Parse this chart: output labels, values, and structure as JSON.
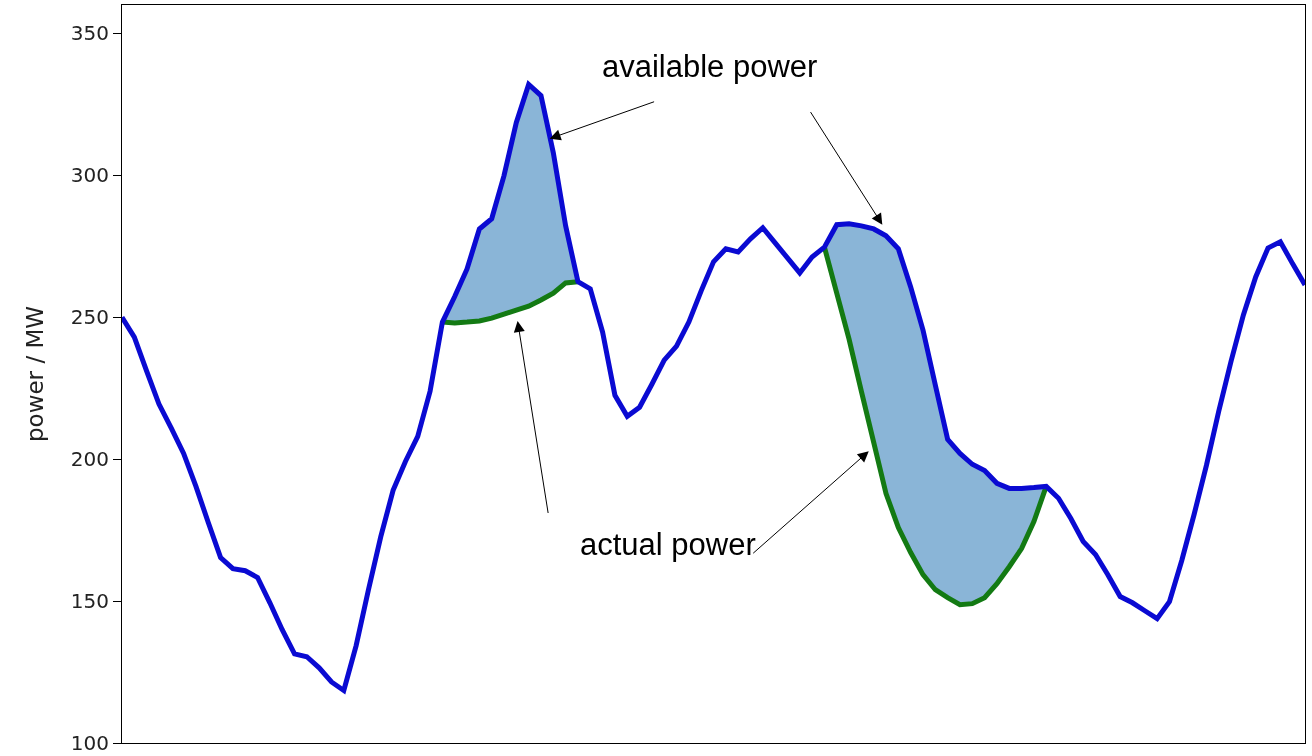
{
  "chart_data": {
    "type": "line",
    "ylabel": "power / MW",
    "annotations": [
      "available power",
      "actual power"
    ],
    "categories": [
      null,
      null,
      null,
      null,
      null,
      null,
      null,
      null,
      null,
      null,
      null,
      null,
      null,
      null,
      null,
      null,
      null,
      null,
      null,
      null,
      null,
      null,
      null,
      null,
      null,
      null,
      null,
      null,
      null,
      null,
      null,
      null,
      null,
      null,
      null,
      null,
      null,
      null,
      null,
      null,
      null,
      null,
      null,
      null,
      null,
      null,
      null,
      null,
      null,
      null,
      null,
      null,
      null,
      null,
      null,
      null,
      null,
      null,
      null,
      null,
      null,
      null,
      null,
      null,
      null,
      null,
      null,
      null,
      null,
      null,
      null,
      null,
      null,
      null,
      null,
      null,
      null,
      null,
      null,
      null,
      null,
      null,
      null,
      null,
      null,
      null,
      null,
      null,
      null,
      null,
      null,
      null,
      null,
      null,
      null,
      null,
      null
    ],
    "series": [
      {
        "color": "#0a0ad2",
        "values": [
          250,
          243,
          231,
          219.4,
          210.9,
          202,
          190.4,
          177.7,
          165.3,
          161.4,
          160.7,
          158.3,
          149.4,
          139.9,
          131.4,
          130.4,
          126.5,
          121.5,
          118.5,
          134.3,
          154,
          172.7,
          189,
          199.2,
          208,
          223.9,
          248.3,
          257.3,
          267,
          281.1,
          284.7,
          299.9,
          318.6,
          332,
          328.1,
          308,
          282.2,
          262.5,
          260,
          244.8,
          222.5,
          215.1,
          218.3,
          226.4,
          234.9,
          239.8,
          248.3,
          259.3,
          269.5,
          274.1,
          273,
          277.6,
          281.5,
          276.2,
          270.9,
          265.6,
          271.2,
          274.7,
          282.6,
          282.9,
          282.2,
          281.1,
          278.7,
          274.1,
          260.7,
          245.5,
          226.1,
          207,
          202,
          198.2,
          196,
          191.5,
          189.7,
          189.7,
          190,
          190.4,
          186.2,
          179.1,
          171,
          166.4,
          159.3,
          151.6,
          149.4,
          146.6,
          143.8,
          149.8,
          164.3,
          180.5,
          197.8,
          216.9,
          234.5,
          250.8,
          264.2,
          274.4,
          276.6,
          268.8,
          261.4
        ]
      },
      {
        "color": "#137a13",
        "values": [
          null,
          null,
          null,
          null,
          null,
          null,
          null,
          null,
          null,
          null,
          null,
          null,
          null,
          null,
          null,
          null,
          null,
          null,
          null,
          null,
          null,
          null,
          null,
          null,
          null,
          null,
          248.3,
          248,
          248.3,
          248.7,
          249.7,
          251.1,
          252.5,
          253.9,
          256.1,
          258.5,
          262.1,
          262.5,
          null,
          null,
          null,
          null,
          null,
          null,
          null,
          null,
          null,
          null,
          null,
          null,
          null,
          null,
          null,
          null,
          null,
          null,
          null,
          274.7,
          258.5,
          242.3,
          223.9,
          205.9,
          187.9,
          175.9,
          167.1,
          159.3,
          154,
          151.2,
          148.7,
          149.1,
          151.2,
          156.1,
          162.1,
          168.5,
          178,
          190.4,
          null,
          null,
          null,
          null,
          null,
          null,
          null,
          null,
          null,
          null,
          null,
          null,
          null,
          null,
          null,
          null,
          null,
          null,
          null,
          null,
          null
        ],
        "lower": [
          null,
          null,
          null,
          null,
          null,
          null,
          null,
          null,
          null,
          null,
          null,
          null,
          null,
          null,
          null,
          null,
          null,
          null,
          null,
          null,
          null,
          null,
          null,
          null,
          null,
          null,
          248.3,
          248,
          248.3,
          248.7,
          249.7,
          251.1,
          252.5,
          253.9,
          256.1,
          258.5,
          262.1,
          262.5,
          null,
          null,
          null,
          null,
          null,
          null,
          null,
          null,
          null,
          null,
          null,
          null,
          null,
          null,
          null,
          null,
          null,
          null,
          null,
          274.7,
          258.5,
          242.3,
          223.9,
          205.9,
          187.9,
          175.9,
          167.1,
          159.3,
          154,
          151.2,
          148.7,
          149.1,
          151.2,
          156.1,
          162.1,
          168.5,
          178,
          190.4,
          null,
          null,
          null,
          null,
          null,
          null,
          null,
          null,
          null,
          null,
          null,
          null,
          null,
          null,
          null,
          null,
          null,
          null,
          null,
          null,
          null
        ],
        "upper": [
          null,
          null,
          null,
          null,
          null,
          null,
          null,
          null,
          null,
          null,
          null,
          null,
          null,
          null,
          null,
          null,
          null,
          null,
          null,
          null,
          null,
          null,
          null,
          null,
          null,
          null,
          248.3,
          257.3,
          267,
          281.1,
          284.7,
          299.9,
          318.6,
          332,
          328.1,
          308,
          282.2,
          262.5,
          null,
          null,
          null,
          null,
          null,
          null,
          null,
          null,
          null,
          null,
          null,
          null,
          null,
          null,
          null,
          null,
          null,
          null,
          null,
          274.7,
          282.6,
          282.9,
          282.2,
          281.1,
          278.7,
          274.1,
          260.7,
          245.5,
          226.1,
          207,
          202,
          198.2,
          196,
          191.5,
          189.7,
          189.7,
          190,
          190.4,
          null,
          null,
          null,
          null,
          null,
          null,
          null,
          null,
          null,
          null,
          null,
          null,
          null,
          null,
          null,
          null,
          null,
          null,
          null,
          null,
          null
        ]
      }
    ],
    "ylim": [
      100,
      360
    ],
    "yticks": [
      100,
      150,
      200,
      250,
      300,
      350
    ],
    "tick_labels": "y"
  }
}
